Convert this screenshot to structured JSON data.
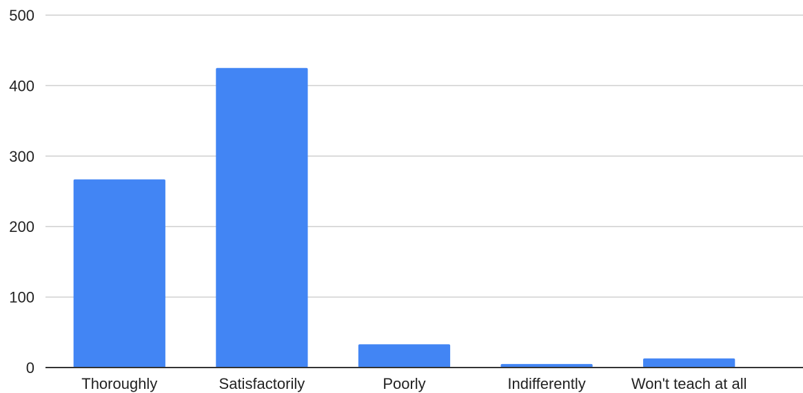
{
  "chart_data": {
    "type": "bar",
    "title": "",
    "xlabel": "",
    "ylabel": "",
    "categories": [
      "Thoroughly",
      "Satisfactorily",
      "Poorly",
      "Indifferently",
      "Won't teach at all"
    ],
    "series": [
      {
        "values": [
          267,
          425,
          33,
          5,
          13
        ],
        "color": "#4285f4"
      }
    ],
    "ylim": [
      0,
      500
    ],
    "yticks": [
      0,
      100,
      200,
      300,
      400,
      500
    ],
    "grid": true,
    "legend": "none"
  }
}
